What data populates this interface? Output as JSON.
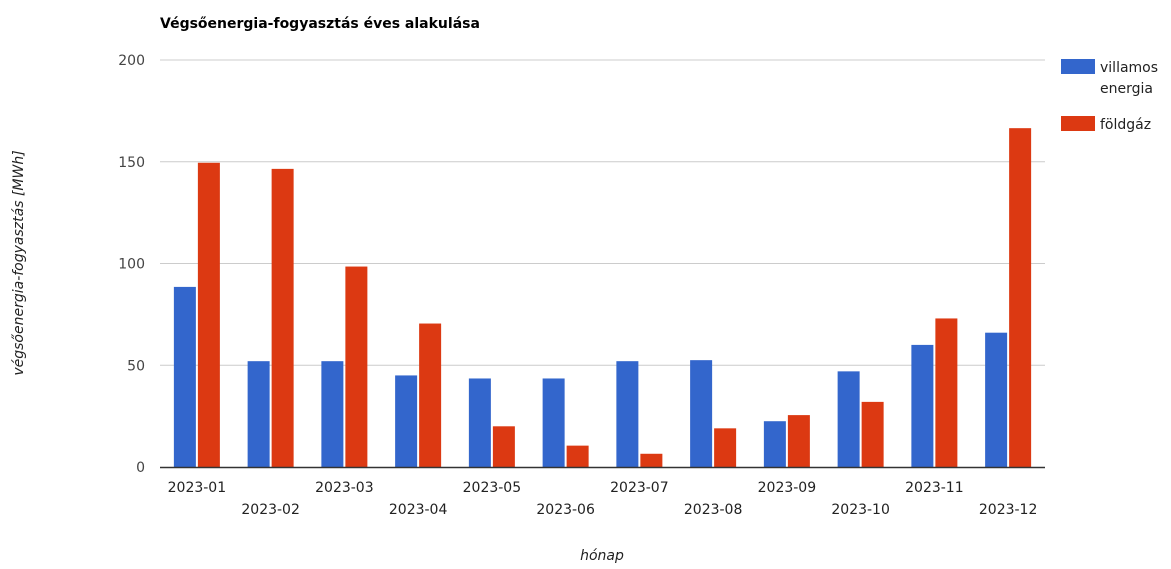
{
  "chart_data": {
    "type": "bar",
    "title": "Végsőenergia-fogyasztás éves alakulása",
    "xlabel": "hónap",
    "ylabel": "végsőenergia-fogyasztás [MWh]",
    "ylim": [
      0,
      200
    ],
    "yticks": [
      0,
      50,
      100,
      150,
      200
    ],
    "grid": true,
    "legend_position": "right",
    "categories": [
      "2023-01",
      "2023-02",
      "2023-03",
      "2023-04",
      "2023-05",
      "2023-06",
      "2023-07",
      "2023-08",
      "2023-09",
      "2023-10",
      "2023-11",
      "2023-12"
    ],
    "series": [
      {
        "name": "villamos energia",
        "legend_lines": [
          "villamos",
          "energia"
        ],
        "color": "#3366cc",
        "values": [
          88.5,
          52,
          52,
          45,
          43.5,
          43.5,
          52,
          52.5,
          22.5,
          47,
          60,
          66
        ]
      },
      {
        "name": "földgáz",
        "legend_lines": [
          "földgáz"
        ],
        "color": "#dc3912",
        "values": [
          149.5,
          146.5,
          98.5,
          70.5,
          20,
          10.5,
          6.5,
          19,
          25.5,
          32,
          73,
          166.5
        ]
      }
    ]
  }
}
